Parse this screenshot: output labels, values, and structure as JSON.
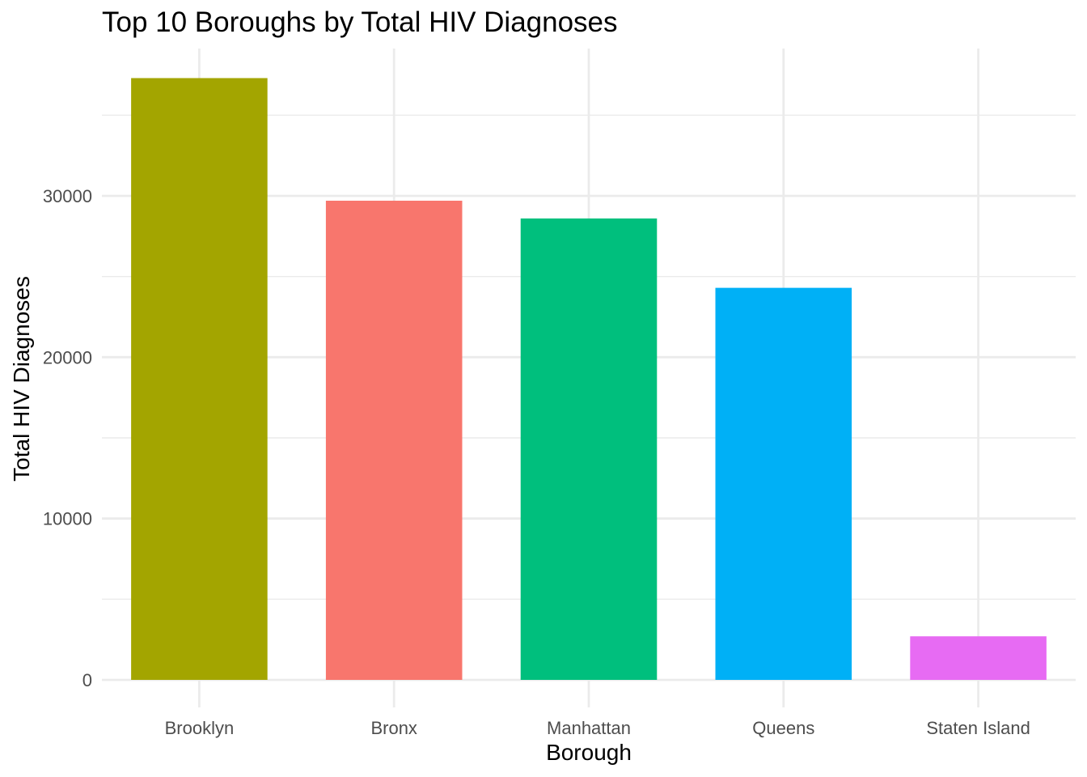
{
  "chart_data": {
    "type": "bar",
    "title": "Top 10 Boroughs by Total HIV Diagnoses",
    "xlabel": "Borough",
    "ylabel": "Total HIV Diagnoses",
    "categories": [
      "Brooklyn",
      "Bronx",
      "Manhattan",
      "Queens",
      "Staten Island"
    ],
    "values": [
      37300,
      29700,
      28600,
      24300,
      2700
    ],
    "colors": [
      "#A3A500",
      "#F8766D",
      "#00BF7D",
      "#00B0F6",
      "#E76BF3"
    ],
    "ylim": [
      0,
      37300
    ],
    "y_ticks": [
      0,
      10000,
      20000,
      30000
    ],
    "y_tick_labels": [
      "0",
      "10000",
      "20000",
      "30000"
    ],
    "grid": true,
    "legend": "none",
    "background": "#FFFFFF",
    "grid_color": "#EBEBEB"
  }
}
